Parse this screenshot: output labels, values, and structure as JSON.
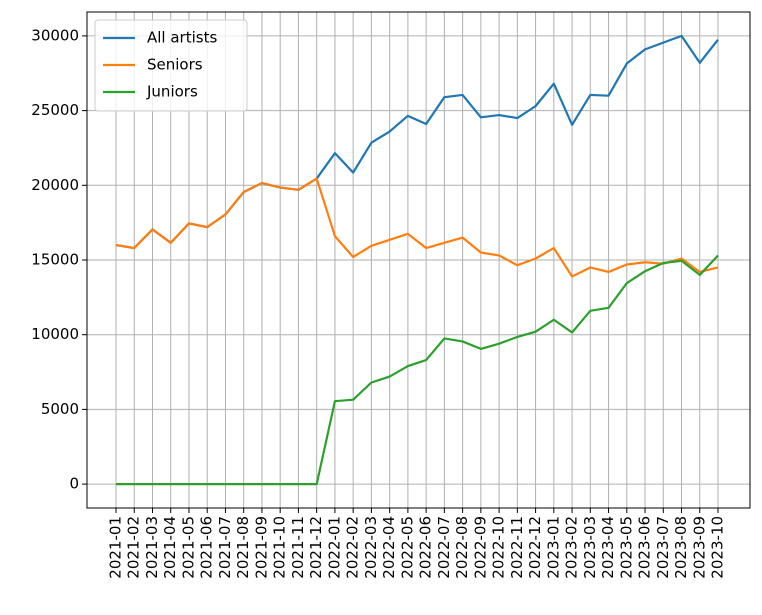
{
  "chart_data": {
    "type": "line",
    "categories": [
      "2021-01",
      "2021-02",
      "2021-03",
      "2021-04",
      "2021-05",
      "2021-06",
      "2021-07",
      "2021-08",
      "2021-09",
      "2021-10",
      "2021-11",
      "2021-12",
      "2022-01",
      "2022-02",
      "2022-03",
      "2022-04",
      "2022-05",
      "2022-06",
      "2022-07",
      "2022-08",
      "2022-09",
      "2022-10",
      "2022-11",
      "2022-12",
      "2023-01",
      "2023-02",
      "2023-03",
      "2023-04",
      "2023-05",
      "2023-06",
      "2023-07",
      "2023-08",
      "2023-09",
      "2023-10"
    ],
    "series": [
      {
        "name": "All artists",
        "color": "#1f77b4",
        "values": [
          16000,
          15800,
          17050,
          16150,
          17450,
          17200,
          18050,
          19550,
          20150,
          19850,
          19700,
          20450,
          22150,
          20850,
          22850,
          23600,
          24650,
          24100,
          25900,
          26050,
          24550,
          24700,
          24500,
          25300,
          26800,
          24050,
          26050,
          26000,
          28150,
          29100,
          29550,
          30000,
          28200,
          29750
        ]
      },
      {
        "name": "Seniors",
        "color": "#ff7f0e",
        "values": [
          16000,
          15800,
          17050,
          16150,
          17450,
          17200,
          18050,
          19550,
          20150,
          19850,
          19700,
          20450,
          16600,
          15200,
          15950,
          16350,
          16750,
          15800,
          16150,
          16500,
          15500,
          15300,
          14650,
          15100,
          15800,
          13900,
          14500,
          14200,
          14700,
          14850,
          14750,
          15100,
          14200,
          14500
        ]
      },
      {
        "name": "Juniors",
        "color": "#2ca02c",
        "values": [
          0,
          0,
          0,
          0,
          0,
          0,
          0,
          0,
          0,
          0,
          0,
          0,
          5550,
          5650,
          6800,
          7200,
          7900,
          8300,
          9750,
          9550,
          9050,
          9400,
          9850,
          10200,
          11000,
          10150,
          11600,
          11800,
          13450,
          14250,
          14800,
          14950,
          14000,
          15300
        ]
      }
    ],
    "ylim": [
      -1600,
      31600
    ],
    "yticks": [
      0,
      5000,
      10000,
      15000,
      20000,
      25000,
      30000
    ],
    "grid": true,
    "legend": "upper left"
  }
}
